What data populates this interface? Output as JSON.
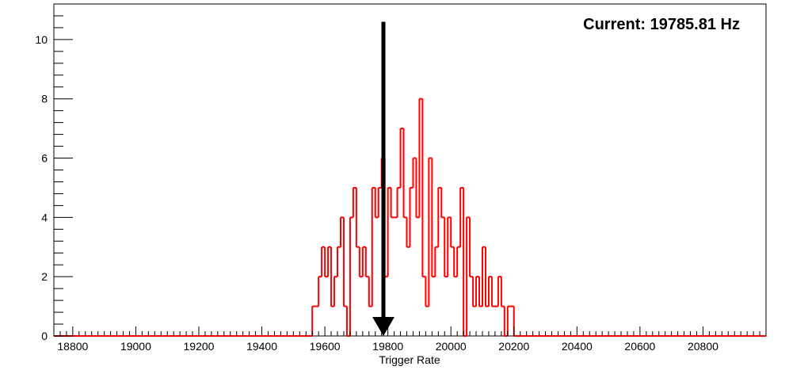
{
  "chart_data": {
    "type": "histogram",
    "title": "",
    "annotation": "Current: 19785.81 Hz",
    "xlabel": "Trigger Rate",
    "ylabel": "",
    "xlim": [
      18740,
      21000
    ],
    "ylim": [
      0,
      11.2
    ],
    "bin_width": 10,
    "x_ticks": [
      18800,
      19000,
      19200,
      19400,
      19600,
      19800,
      20000,
      20200,
      20400,
      20600,
      20800
    ],
    "x_tick_labels": [
      "18800",
      "19000",
      "19200",
      "19400",
      "19600",
      "19800",
      "20000",
      "20200",
      "20400",
      "20600",
      "20800"
    ],
    "y_ticks": [
      0,
      2,
      4,
      6,
      8,
      10
    ],
    "y_tick_labels": [
      "0",
      "2",
      "4",
      "6",
      "8",
      "10"
    ],
    "marker_x": 19785.81,
    "marker_y_top": 10.6,
    "colors": {
      "histogram": "#ff0000",
      "marker": "#000000",
      "axis": "#000000"
    },
    "bins": [
      {
        "x": 19560,
        "y": 1
      },
      {
        "x": 19570,
        "y": 1
      },
      {
        "x": 19580,
        "y": 2
      },
      {
        "x": 19590,
        "y": 3
      },
      {
        "x": 19600,
        "y": 2
      },
      {
        "x": 19610,
        "y": 3
      },
      {
        "x": 19620,
        "y": 1
      },
      {
        "x": 19630,
        "y": 2
      },
      {
        "x": 19640,
        "y": 3
      },
      {
        "x": 19650,
        "y": 4
      },
      {
        "x": 19660,
        "y": 1
      },
      {
        "x": 19670,
        "y": 0
      },
      {
        "x": 19680,
        "y": 4
      },
      {
        "x": 19690,
        "y": 5
      },
      {
        "x": 19700,
        "y": 3
      },
      {
        "x": 19710,
        "y": 2
      },
      {
        "x": 19720,
        "y": 3
      },
      {
        "x": 19730,
        "y": 2
      },
      {
        "x": 19740,
        "y": 1
      },
      {
        "x": 19750,
        "y": 5
      },
      {
        "x": 19760,
        "y": 4
      },
      {
        "x": 19770,
        "y": 5
      },
      {
        "x": 19780,
        "y": 6
      },
      {
        "x": 19790,
        "y": 2
      },
      {
        "x": 19800,
        "y": 5
      },
      {
        "x": 19810,
        "y": 4
      },
      {
        "x": 19820,
        "y": 4
      },
      {
        "x": 19830,
        "y": 5
      },
      {
        "x": 19840,
        "y": 7
      },
      {
        "x": 19850,
        "y": 4
      },
      {
        "x": 19860,
        "y": 3
      },
      {
        "x": 19870,
        "y": 5
      },
      {
        "x": 19880,
        "y": 6
      },
      {
        "x": 19890,
        "y": 4
      },
      {
        "x": 19900,
        "y": 8
      },
      {
        "x": 19910,
        "y": 2
      },
      {
        "x": 19920,
        "y": 1
      },
      {
        "x": 19930,
        "y": 6
      },
      {
        "x": 19940,
        "y": 2
      },
      {
        "x": 19950,
        "y": 3
      },
      {
        "x": 19960,
        "y": 5
      },
      {
        "x": 19970,
        "y": 4
      },
      {
        "x": 19980,
        "y": 2
      },
      {
        "x": 19990,
        "y": 4
      },
      {
        "x": 20000,
        "y": 3
      },
      {
        "x": 20010,
        "y": 2
      },
      {
        "x": 20020,
        "y": 3
      },
      {
        "x": 20030,
        "y": 5
      },
      {
        "x": 20040,
        "y": 0
      },
      {
        "x": 20050,
        "y": 4
      },
      {
        "x": 20060,
        "y": 2
      },
      {
        "x": 20070,
        "y": 1
      },
      {
        "x": 20080,
        "y": 2
      },
      {
        "x": 20090,
        "y": 1
      },
      {
        "x": 20100,
        "y": 3
      },
      {
        "x": 20110,
        "y": 1
      },
      {
        "x": 20120,
        "y": 2
      },
      {
        "x": 20130,
        "y": 1
      },
      {
        "x": 20140,
        "y": 1
      },
      {
        "x": 20150,
        "y": 2
      },
      {
        "x": 20160,
        "y": 1
      },
      {
        "x": 20170,
        "y": 0
      },
      {
        "x": 20180,
        "y": 1
      },
      {
        "x": 20190,
        "y": 1
      },
      {
        "x": 20200,
        "y": 0
      }
    ]
  }
}
